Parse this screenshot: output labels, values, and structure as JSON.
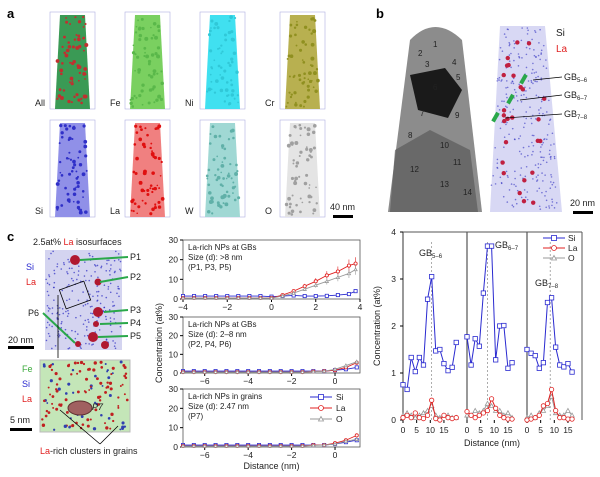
{
  "panel_a": {
    "label": "a",
    "tips": [
      {
        "name": "All",
        "color": "#222222",
        "fill": "#3a9a55",
        "dot": "#c03030"
      },
      {
        "name": "Fe",
        "color": "#3caa3c",
        "fill": "#7ad060",
        "dot": "#5ab84a"
      },
      {
        "name": "Ni",
        "color": "#30d0e0",
        "fill": "#40e0f0",
        "dot": "#30c8d8"
      },
      {
        "name": "Cr",
        "color": "#a0a020",
        "fill": "#b8b050",
        "dot": "#909020"
      },
      {
        "name": "Si",
        "color": "#2a2ad0",
        "fill": "#9090e8",
        "dot": "#3030c8"
      },
      {
        "name": "La",
        "color": "#e02020",
        "fill": "#f08080",
        "dot": "#e01010"
      },
      {
        "name": "W",
        "color": "#60b8b0",
        "fill": "#a0d8d4",
        "dot": "#60b0a8"
      },
      {
        "name": "O",
        "color": "#888888",
        "fill": "#e4e4e4",
        "dot": "#a0a0a0"
      }
    ],
    "scalebar": "40 nm"
  },
  "panel_b": {
    "label": "b",
    "grain_numbers": [
      "1",
      "2",
      "3",
      "4",
      "5",
      "6",
      "7",
      "8",
      "9",
      "10",
      "11",
      "12",
      "13",
      "14"
    ],
    "legend_si": "Si",
    "legend_la": "La",
    "gb_labels": [
      {
        "main": "GB",
        "sub": "5–6"
      },
      {
        "main": "GB",
        "sub": "6–7"
      },
      {
        "main": "GB",
        "sub": "7–8"
      }
    ],
    "scalebar": "20 nm"
  },
  "panel_c": {
    "label": "c",
    "title_prefix": "2.5at% ",
    "title_la": "La",
    "title_suffix": " isosurfaces",
    "top_legend": [
      "Si",
      "La"
    ],
    "particles": [
      "P1",
      "P2",
      "P3",
      "P4",
      "P5",
      "P6"
    ],
    "scalebar_top": "20 nm",
    "bottom_legend": [
      "Fe",
      "Si",
      "La"
    ],
    "p7": "P7",
    "scalebar_bottom": "5 nm",
    "clusters_la": "La",
    "clusters_suffix": "-rich clusters in grains"
  },
  "colors": {
    "Si": "#2a2ad0",
    "La": "#e02020",
    "O": "#999999",
    "gb": "#2aa84a"
  },
  "chart_data": [
    {
      "type": "line",
      "annotation": [
        "La-rich NPs at GBs",
        "Size (d): >8 nm",
        "(P1, P3, P5)"
      ],
      "xlim": [
        -4,
        4
      ],
      "ylim": [
        0,
        30
      ],
      "xticks": [
        -4,
        -2,
        0,
        2,
        4
      ],
      "yticks": [
        0,
        10,
        20,
        30
      ],
      "x": [
        -4,
        -3.5,
        -3,
        -2.5,
        -2,
        -1.5,
        -1,
        -0.5,
        0,
        0.5,
        1,
        1.5,
        2,
        2.5,
        3,
        3.5,
        3.8
      ],
      "series": [
        {
          "name": "Si",
          "values": [
            1.5,
            1.5,
            1.5,
            1.5,
            1.5,
            1.5,
            1.5,
            1.5,
            1.2,
            1.5,
            1.8,
            1.5,
            1.5,
            1.6,
            2,
            2.5,
            4
          ]
        },
        {
          "name": "La",
          "values": [
            0.5,
            0.5,
            0.5,
            0.5,
            0.5,
            0.5,
            0.5,
            0.5,
            0.5,
            2,
            4,
            6.5,
            9,
            12,
            14,
            17,
            18
          ]
        },
        {
          "name": "O",
          "values": [
            0.5,
            0.5,
            0.5,
            0.5,
            0.5,
            0.5,
            0.5,
            0.5,
            0.4,
            1.5,
            3,
            5,
            7,
            9,
            11,
            13,
            15
          ]
        }
      ]
    },
    {
      "type": "line",
      "annotation": [
        "La-rich NPs at GBs",
        "Size (d): 2–8 nm",
        "(P2, P4, P6)"
      ],
      "xlim": [
        -7,
        1.15
      ],
      "ylim": [
        0,
        30
      ],
      "xticks": [
        -6,
        -4,
        -2,
        0
      ],
      "yticks": [
        0,
        10,
        20,
        30
      ],
      "x": [
        -7,
        -6.5,
        -6,
        -5.5,
        -5,
        -4.5,
        -4,
        -3.5,
        -3,
        -2.5,
        -2,
        -1.5,
        -1,
        -0.5,
        0,
        0.5,
        1
      ],
      "series": [
        {
          "name": "Si",
          "values": [
            1,
            1,
            1,
            1,
            1,
            1,
            1,
            1,
            1,
            1,
            1,
            1,
            1,
            1,
            1.5,
            2,
            3
          ]
        },
        {
          "name": "La",
          "values": [
            0.5,
            0.5,
            0.5,
            0.5,
            0.5,
            0.5,
            0.5,
            0.5,
            0.5,
            0.5,
            0.5,
            0.5,
            0.8,
            1,
            1.5,
            3,
            5.5
          ]
        },
        {
          "name": "O",
          "values": [
            0.5,
            0.5,
            0.5,
            0.5,
            0.5,
            0.5,
            0.5,
            0.5,
            0.5,
            0.5,
            0.5,
            0.5,
            0.7,
            1,
            2,
            4,
            6
          ]
        }
      ]
    },
    {
      "type": "line",
      "annotation": [
        "La-rich NPs in grains",
        "Size (d): 2.47 nm",
        "(P7)"
      ],
      "xlim": [
        -7,
        1.15
      ],
      "ylim": [
        0,
        30
      ],
      "xticks": [
        -6,
        -4,
        -2,
        0
      ],
      "yticks": [
        0,
        10,
        20,
        30
      ],
      "xlabel": "Distance (nm)",
      "ylabel": "Concentration (at%)",
      "legend": [
        "Si",
        "La",
        "O"
      ],
      "x": [
        -7,
        -6.5,
        -6,
        -5.5,
        -5,
        -4.5,
        -4,
        -3.5,
        -3,
        -2.5,
        -2,
        -1.5,
        -1,
        -0.5,
        0,
        0.5,
        1
      ],
      "series": [
        {
          "name": "Si",
          "values": [
            1,
            1,
            1,
            1,
            1,
            1,
            1,
            1,
            1,
            1,
            1,
            1,
            1,
            1,
            1.5,
            2.5,
            3.5
          ]
        },
        {
          "name": "La",
          "values": [
            0.5,
            0.5,
            0.5,
            0.5,
            0.5,
            0.5,
            0.5,
            0.5,
            0.5,
            0.5,
            0.5,
            0.5,
            1,
            1,
            2,
            3.5,
            6
          ]
        },
        {
          "name": "O",
          "values": [
            0.5,
            0.5,
            0.5,
            0.5,
            0.5,
            0.5,
            0.5,
            0.5,
            0.5,
            0.5,
            0.5,
            0.5,
            0.8,
            1,
            1.5,
            3,
            4
          ]
        }
      ]
    },
    {
      "type": "line",
      "xlabel": "Distance (nm)",
      "ylabel": "Concentration (at%)",
      "ylim": [
        0,
        4
      ],
      "yticks": [
        0,
        1,
        2,
        3,
        4
      ],
      "xticks": [
        0,
        5,
        10,
        15
      ],
      "legend": [
        "Si",
        "La",
        "O"
      ],
      "legend_placement": "top-right",
      "panels": [
        {
          "gb": "GB",
          "gb_sub": "5–6",
          "gb_x": 10.5,
          "x": [
            0,
            1.5,
            3,
            4.5,
            6,
            7.5,
            9,
            10.5,
            12,
            13.5,
            15,
            16.5,
            18,
            19.5
          ],
          "Si": [
            0.75,
            0.65,
            1.33,
            1.03,
            1.33,
            1.17,
            2.57,
            3.05,
            1.47,
            1.5,
            1.2,
            1.05,
            1.12,
            1.65
          ],
          "La": [
            0.05,
            0.1,
            0.05,
            0.15,
            0.05,
            0.03,
            0.1,
            0.42,
            0.03,
            0,
            0.1,
            0.05,
            0.03,
            0.05
          ],
          "O": [
            0.1,
            0.15,
            0.1,
            0.05,
            0.1,
            0.15,
            0.2,
            0.3,
            0.1,
            0.05,
            0.1,
            0.1,
            0.05,
            0.05
          ]
        },
        {
          "gb": "GB",
          "gb_sub": "6–7",
          "gb_x": 7.5,
          "x": [
            0,
            1.5,
            3,
            4.5,
            6,
            7.5,
            9,
            10.5,
            12,
            13.5,
            15,
            16.5
          ],
          "Si": [
            1.77,
            1.17,
            1.73,
            1.57,
            2.7,
            3.7,
            3.7,
            1.28,
            2.0,
            2.01,
            1.1,
            1.22
          ],
          "La": [
            0.18,
            0.1,
            0.05,
            0.1,
            0.15,
            0.2,
            0.45,
            0.25,
            0.1,
            0.05,
            0.02,
            0.02
          ],
          "O": [
            0.1,
            0.1,
            0.2,
            0.15,
            0.2,
            0.35,
            0.3,
            0.2,
            0.2,
            0.1,
            0.15,
            0.05
          ]
        },
        {
          "gb": "GB",
          "gb_sub": "7–8",
          "gb_x": 8.5,
          "x": [
            0,
            1.5,
            3,
            4.5,
            6,
            7.5,
            9,
            10.5,
            12,
            13.5,
            15,
            16.5
          ],
          "Si": [
            1.5,
            1.42,
            1.37,
            1.1,
            1.22,
            2.5,
            2.6,
            1.55,
            1.17,
            1.13,
            1.2,
            1.02
          ],
          "La": [
            0,
            0.02,
            0.05,
            0.1,
            0.3,
            0.35,
            0.65,
            0.2,
            0.05,
            0.05,
            0.02,
            0.02
          ],
          "O": [
            0.05,
            0.1,
            0.05,
            0.15,
            0.2,
            0.3,
            0.5,
            0.15,
            0.1,
            0.1,
            0.2,
            0.1
          ]
        }
      ]
    }
  ]
}
